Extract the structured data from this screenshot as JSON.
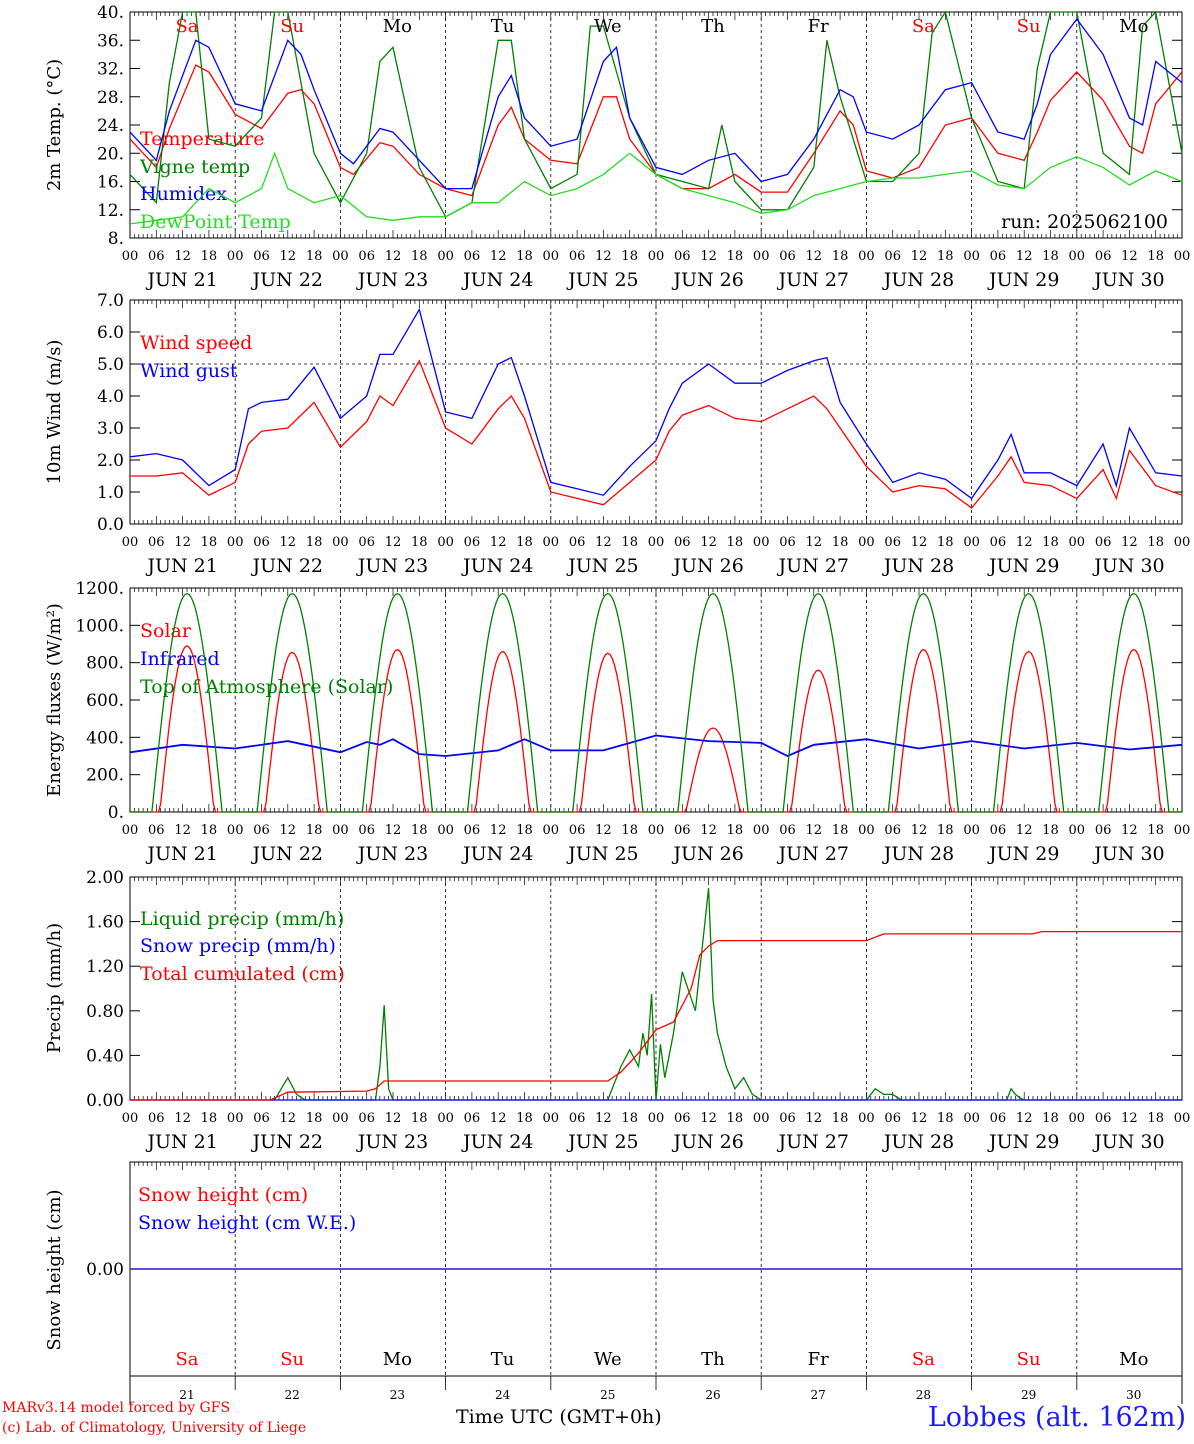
{
  "days": {
    "abbr": [
      "Sa",
      "Su",
      "Mo",
      "Tu",
      "We",
      "Th",
      "Fr",
      "Sa",
      "Su",
      "Mo"
    ],
    "dates": [
      "JUN 21",
      "JUN 22",
      "JUN 23",
      "JUN 24",
      "JUN 25",
      "JUN 26",
      "JUN 27",
      "JUN 28",
      "JUN 29",
      "JUN 30"
    ],
    "numbers": [
      "21",
      "22",
      "23",
      "24",
      "25",
      "26",
      "27",
      "28",
      "29",
      "30"
    ],
    "weekend_color": "#ff0000",
    "weekday_color": "#000000",
    "hour_ticks": [
      "00",
      "06",
      "12",
      "18"
    ],
    "final_hour": "00"
  },
  "run_label": "run: 2025062100",
  "footer": {
    "model": "MARv3.14 model forced by GFS",
    "lab": "(c) Lab. of Climatology, University of Liege",
    "xlabel": "Time UTC (GMT+0h)",
    "station": "Lobbes (alt. 162m)"
  },
  "colors": {
    "red": "#ff0000",
    "green": "#008000",
    "blue": "#0000ff",
    "lime": "#22dd22",
    "grid": "#000000"
  },
  "chart_data": [
    {
      "type": "line",
      "ylabel": "2m Temp. (°C)",
      "ylim": [
        8,
        40
      ],
      "yticks": [
        "8.",
        "12.",
        "16.",
        "20.",
        "24.",
        "28.",
        "32.",
        "36.",
        "40."
      ],
      "x_unit": "hours since 2025-06-21 00 UTC",
      "series": [
        {
          "name": "Temperature",
          "color": "red",
          "x": [
            0,
            6,
            9,
            15,
            18,
            24,
            30,
            36,
            39,
            42,
            48,
            51,
            57,
            60,
            66,
            72,
            78,
            84,
            87,
            90,
            96,
            102,
            108,
            111,
            114,
            120,
            126,
            132,
            138,
            144,
            150,
            156,
            162,
            165,
            168,
            174,
            180,
            186,
            192,
            198,
            204,
            207,
            210,
            216,
            222,
            228,
            231,
            234,
            240
          ],
          "values": [
            22,
            18,
            23.5,
            32.5,
            31.5,
            25.5,
            23.5,
            28.5,
            29,
            27,
            18,
            17,
            21.5,
            21,
            17,
            15,
            14,
            24,
            26.5,
            22,
            19,
            18.5,
            28,
            28,
            22,
            17,
            15,
            15,
            17,
            14.5,
            14.5,
            20,
            26,
            24,
            17.5,
            16.5,
            18,
            24,
            25,
            20,
            19,
            23,
            27.5,
            31.5,
            27.5,
            21,
            20,
            27,
            31.5
          ]
        },
        {
          "name": "Vigne temp",
          "color": "green",
          "x": [
            0,
            6,
            9,
            12,
            15,
            18,
            24,
            30,
            33,
            36,
            42,
            48,
            54,
            57,
            60,
            66,
            72,
            78,
            84,
            87,
            90,
            96,
            102,
            105,
            108,
            114,
            120,
            126,
            132,
            135,
            138,
            144,
            150,
            156,
            159,
            162,
            168,
            174,
            180,
            183,
            186,
            192,
            198,
            204,
            207,
            210,
            216,
            222,
            228,
            231,
            234,
            240
          ],
          "values": [
            17,
            13,
            30,
            40,
            40,
            22,
            21,
            25,
            40,
            42,
            20,
            13,
            20,
            33,
            35,
            18,
            11,
            13,
            36,
            36,
            22,
            15,
            17,
            38,
            38,
            25,
            17,
            16,
            15,
            24,
            16,
            12,
            12,
            18,
            36,
            28,
            16,
            16,
            20,
            37,
            40,
            25,
            16,
            15,
            32,
            42,
            40,
            20,
            17,
            38,
            42,
            20
          ]
        },
        {
          "name": "Humidex",
          "color": "blue",
          "x": [
            0,
            6,
            9,
            15,
            18,
            24,
            30,
            36,
            39,
            42,
            48,
            51,
            57,
            60,
            66,
            72,
            78,
            84,
            87,
            90,
            96,
            102,
            108,
            111,
            114,
            120,
            126,
            132,
            138,
            144,
            150,
            156,
            162,
            165,
            168,
            174,
            180,
            186,
            192,
            198,
            204,
            207,
            210,
            216,
            222,
            228,
            231,
            234,
            240
          ],
          "values": [
            23,
            19,
            26,
            36,
            35,
            27,
            26,
            36,
            34,
            29,
            20,
            18.5,
            23.5,
            23,
            19,
            15,
            15,
            28,
            31,
            25,
            21,
            22,
            33,
            35,
            25,
            18,
            17,
            19,
            20,
            16,
            17,
            22,
            29,
            28,
            23,
            22,
            24,
            29,
            30,
            23,
            22,
            27,
            34,
            39,
            34,
            25,
            24,
            33,
            30
          ]
        },
        {
          "name": "DewPoint Temp",
          "color": "lime",
          "x": [
            0,
            6,
            12,
            18,
            24,
            30,
            33,
            36,
            42,
            48,
            54,
            60,
            66,
            72,
            78,
            84,
            90,
            96,
            102,
            108,
            114,
            120,
            126,
            132,
            138,
            144,
            150,
            156,
            162,
            168,
            174,
            180,
            186,
            192,
            198,
            204,
            210,
            216,
            222,
            228,
            234,
            240
          ],
          "values": [
            10,
            10.5,
            11,
            15,
            13,
            15,
            20,
            15,
            13,
            14,
            11,
            10.5,
            11,
            11,
            13,
            13,
            16,
            14,
            15,
            17,
            20,
            17,
            15,
            14,
            13,
            11.5,
            12,
            14,
            15,
            16,
            16.5,
            16.5,
            17,
            17.5,
            15.5,
            15,
            18,
            19.5,
            18,
            15.5,
            17.5,
            16
          ]
        }
      ]
    },
    {
      "type": "line",
      "ylabel": "10m Wind (m/s)",
      "ylim": [
        0,
        7
      ],
      "yticks": [
        "0.0",
        "1.0",
        "2.0",
        "3.0",
        "4.0",
        "5.0",
        "6.0",
        "7.0"
      ],
      "reference_line": 5.0,
      "x_unit": "hours since 2025-06-21 00 UTC",
      "series": [
        {
          "name": "Wind speed",
          "color": "red",
          "x": [
            0,
            6,
            12,
            18,
            24,
            27,
            30,
            36,
            42,
            48,
            54,
            57,
            60,
            66,
            72,
            78,
            84,
            87,
            90,
            96,
            102,
            108,
            114,
            120,
            123,
            126,
            132,
            138,
            144,
            150,
            156,
            159,
            162,
            168,
            174,
            180,
            186,
            192,
            198,
            201,
            204,
            210,
            216,
            222,
            225,
            228,
            234,
            240
          ],
          "values": [
            1.5,
            1.5,
            1.6,
            0.9,
            1.3,
            2.5,
            2.9,
            3.0,
            3.8,
            2.4,
            3.2,
            4.0,
            3.7,
            5.1,
            3.0,
            2.5,
            3.6,
            4.0,
            3.3,
            1.0,
            0.8,
            0.6,
            1.3,
            2.0,
            2.9,
            3.4,
            3.7,
            3.3,
            3.2,
            3.6,
            4.0,
            3.6,
            3.0,
            1.8,
            1.0,
            1.2,
            1.1,
            0.5,
            1.5,
            2.1,
            1.3,
            1.2,
            0.8,
            1.7,
            0.8,
            2.3,
            1.2,
            0.9
          ]
        },
        {
          "name": "Wind gust",
          "color": "blue",
          "x": [
            0,
            6,
            12,
            18,
            24,
            27,
            30,
            36,
            42,
            48,
            54,
            57,
            60,
            66,
            72,
            78,
            84,
            87,
            90,
            96,
            102,
            108,
            114,
            120,
            123,
            126,
            132,
            138,
            144,
            150,
            156,
            159,
            162,
            168,
            174,
            180,
            186,
            192,
            198,
            201,
            204,
            210,
            216,
            222,
            225,
            228,
            234,
            240
          ],
          "values": [
            2.1,
            2.2,
            2.0,
            1.2,
            1.7,
            3.6,
            3.8,
            3.9,
            4.9,
            3.3,
            4.0,
            5.3,
            5.3,
            6.7,
            3.5,
            3.3,
            5.0,
            5.2,
            4.0,
            1.3,
            1.1,
            0.9,
            1.8,
            2.6,
            3.6,
            4.4,
            5.0,
            4.4,
            4.4,
            4.8,
            5.1,
            5.2,
            3.8,
            2.5,
            1.3,
            1.6,
            1.4,
            0.8,
            2.0,
            2.8,
            1.6,
            1.6,
            1.2,
            2.5,
            1.2,
            3.0,
            1.6,
            1.5
          ]
        }
      ]
    },
    {
      "type": "line",
      "ylabel": "Energy fluxes (W/m²)",
      "ylim": [
        0,
        1200
      ],
      "yticks": [
        "0.",
        "200.",
        "400.",
        "600.",
        "800.",
        "1000.",
        "1200."
      ],
      "x_unit": "hours since 2025-06-21 00 UTC",
      "series": [
        {
          "name": "Solar",
          "color": "red",
          "daily_peak": [
            890,
            855,
            870,
            860,
            850,
            450,
            760,
            870,
            860,
            870
          ]
        },
        {
          "name": "Infrared",
          "color": "blue",
          "x": [
            0,
            12,
            24,
            36,
            48,
            54,
            57,
            60,
            66,
            72,
            84,
            90,
            96,
            108,
            120,
            132,
            144,
            150,
            156,
            168,
            180,
            192,
            204,
            216,
            228,
            240
          ],
          "values": [
            320,
            360,
            340,
            380,
            320,
            375,
            360,
            390,
            310,
            300,
            330,
            390,
            330,
            330,
            410,
            380,
            370,
            300,
            360,
            390,
            340,
            380,
            340,
            370,
            335,
            360
          ]
        },
        {
          "name": "Top of Atmosphere (Solar)",
          "color": "green",
          "daily_peak": [
            1170,
            1170,
            1170,
            1170,
            1170,
            1170,
            1170,
            1170,
            1170,
            1170
          ]
        }
      ]
    },
    {
      "type": "line",
      "ylabel": "Precip (mm/h)",
      "ylim": [
        0,
        2
      ],
      "yticks": [
        "0.00",
        "0.40",
        "0.80",
        "1.20",
        "1.60",
        "2.00"
      ],
      "x_unit": "hours since 2025-06-21 00 UTC",
      "series": [
        {
          "name": "Liquid precip (mm/h)",
          "color": "green",
          "x": [
            0,
            33,
            36,
            38,
            40,
            56,
            57,
            58,
            59,
            60,
            109,
            112,
            114,
            116,
            117,
            118,
            119,
            120,
            121,
            122,
            124,
            126,
            129,
            132,
            133,
            134,
            136,
            138,
            140,
            142,
            144,
            168,
            170,
            172,
            174,
            176,
            200,
            201,
            202,
            203,
            204,
            240
          ],
          "values": [
            0,
            0,
            0.2,
            0.05,
            0,
            0,
            0.3,
            0.85,
            0.1,
            0,
            0,
            0.3,
            0.45,
            0.3,
            0.6,
            0.4,
            0.95,
            0.0,
            0.5,
            0.2,
            0.6,
            1.15,
            0.8,
            1.9,
            0.9,
            0.6,
            0.3,
            0.1,
            0.2,
            0.05,
            0,
            0,
            0.1,
            0.05,
            0.05,
            0,
            0,
            0.1,
            0.05,
            0.02,
            0,
            0
          ]
        },
        {
          "name": "Snow precip (mm/h)",
          "color": "blue",
          "x": [
            0,
            240
          ],
          "values": [
            0,
            0
          ]
        },
        {
          "name": "Total cumulated (cm)",
          "color": "red",
          "x": [
            0,
            32,
            36,
            54,
            56,
            58,
            109,
            112,
            116,
            120,
            124,
            128,
            130,
            132,
            134,
            140,
            168,
            172,
            206,
            208,
            240
          ],
          "values": [
            0,
            0,
            0.07,
            0.08,
            0.1,
            0.17,
            0.17,
            0.25,
            0.42,
            0.63,
            0.7,
            1.0,
            1.3,
            1.38,
            1.43,
            1.43,
            1.43,
            1.49,
            1.49,
            1.51,
            1.51
          ]
        }
      ]
    },
    {
      "type": "line",
      "ylabel": "Snow height (cm)",
      "ylim": [
        -1,
        1
      ],
      "yticks": [
        "0.00"
      ],
      "x_unit": "hours since 2025-06-21 00 UTC",
      "series": [
        {
          "name": "Snow height (cm)",
          "color": "red",
          "x": [
            0,
            240
          ],
          "values": [
            0,
            0
          ]
        },
        {
          "name": "Snow height (cm W.E.)",
          "color": "blue",
          "x": [
            0,
            240
          ],
          "values": [
            0,
            0
          ]
        }
      ]
    }
  ]
}
